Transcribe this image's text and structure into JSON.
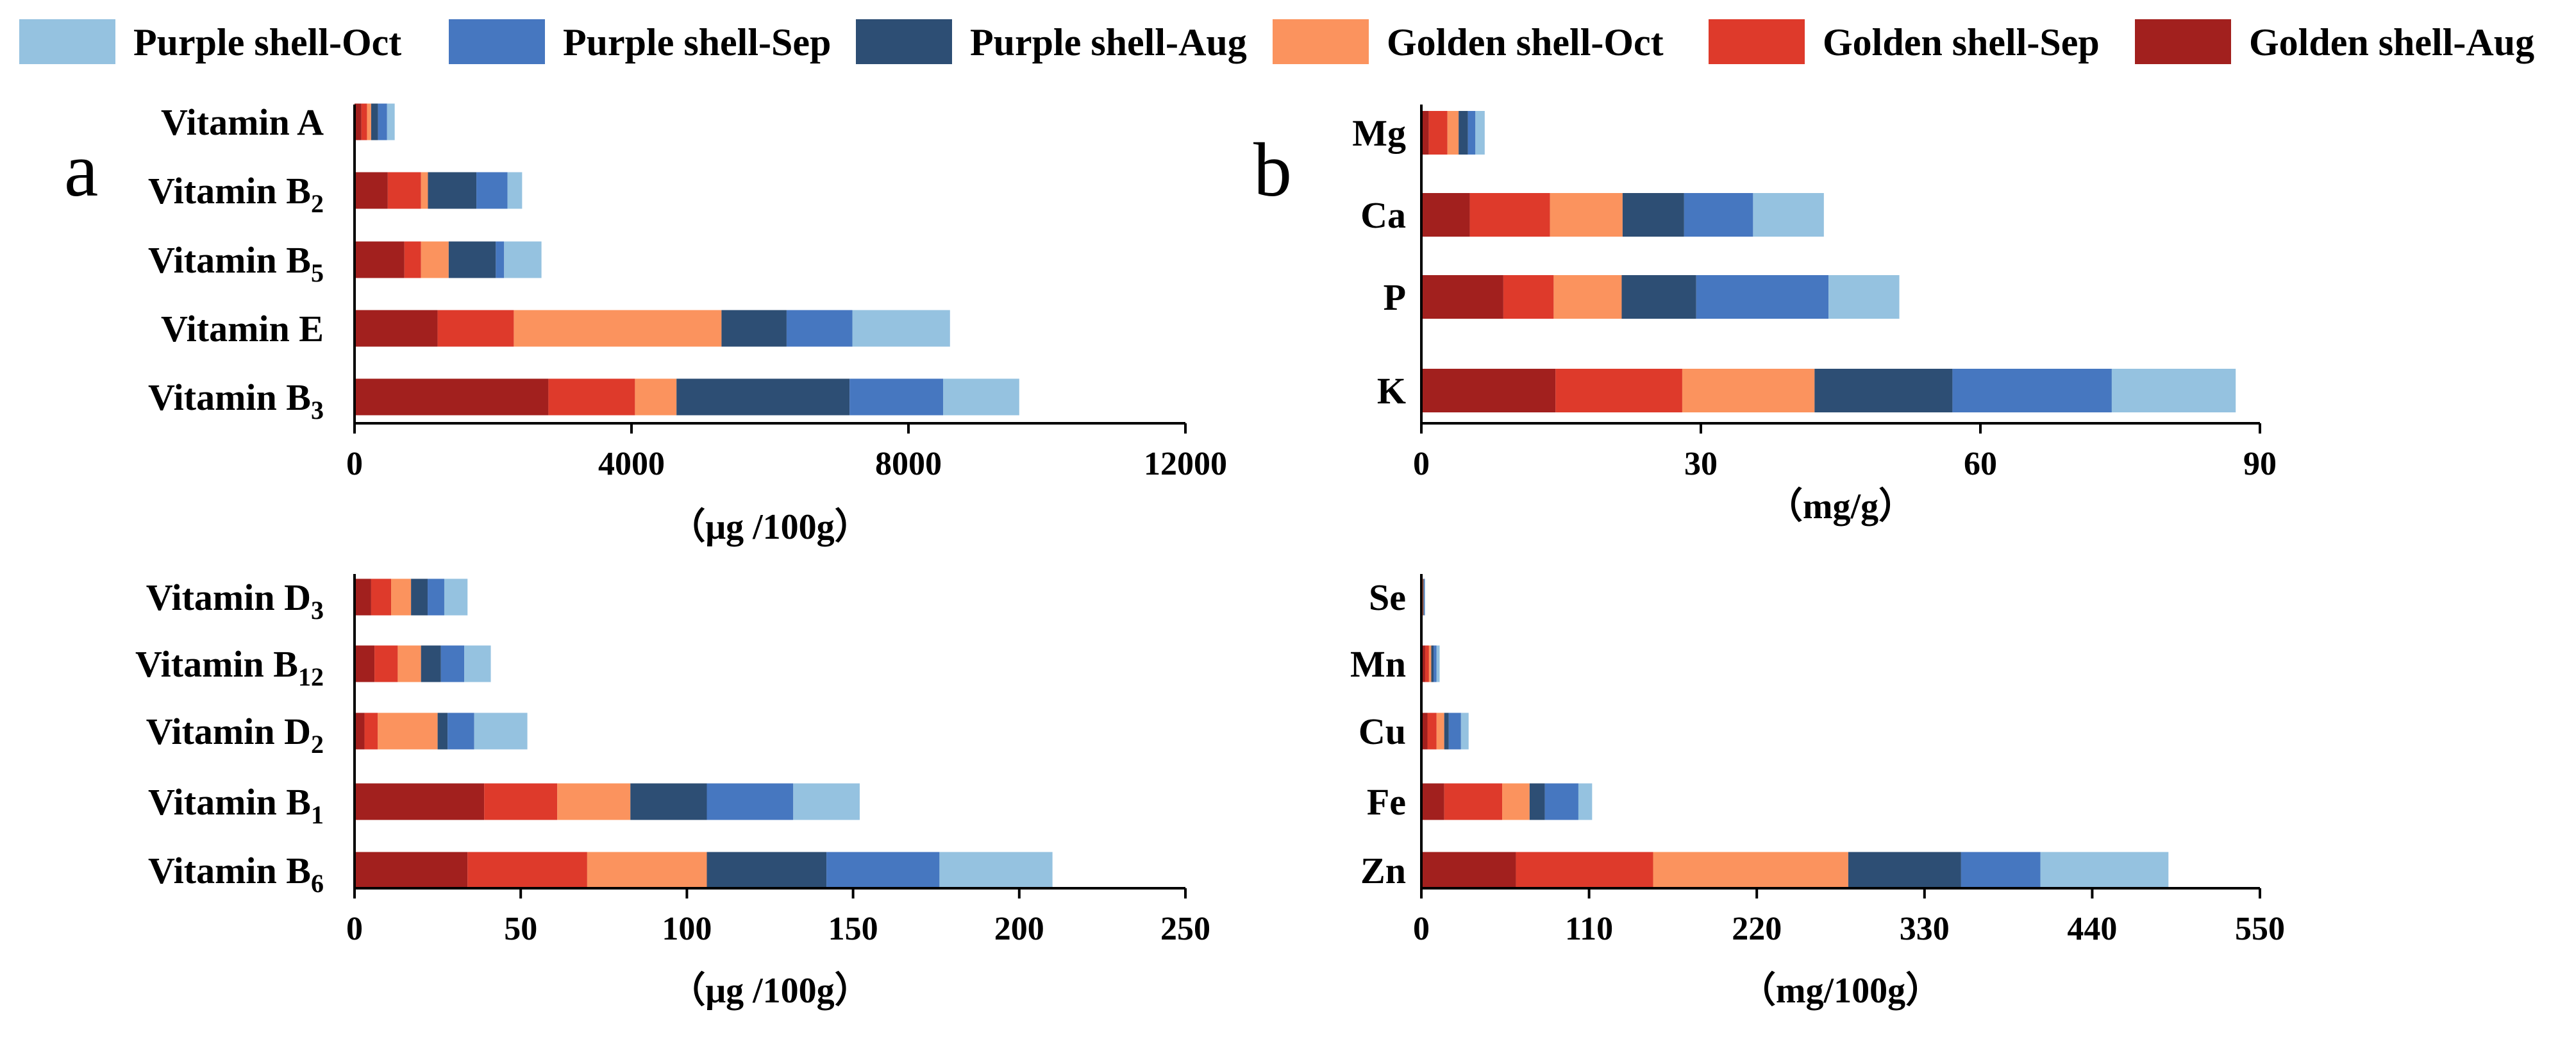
{
  "legend": [
    {
      "name": "Purple shell-Oct",
      "color": "#95C2E0"
    },
    {
      "name": "Purple shell-Sep",
      "color": "#4677C0"
    },
    {
      "name": "Purple shell-Aug",
      "color": "#2D4E74"
    },
    {
      "name": "Golden shell-Oct",
      "color": "#FB935E"
    },
    {
      "name": "Golden shell-Sep",
      "color": "#DE3A2B"
    },
    {
      "name": "Golden shell-Aug",
      "color": "#A2201E"
    }
  ],
  "panel_letters": {
    "a": "a",
    "b": "b"
  },
  "chart_data": [
    {
      "type": "bar",
      "orientation": "horizontal",
      "stacked": true,
      "panel": "top-left",
      "categories": [
        {
          "parts": [
            {
              "t": "Vitamin A"
            }
          ]
        },
        {
          "parts": [
            {
              "t": "Vitamin B"
            },
            {
              "sub": "2"
            }
          ]
        },
        {
          "parts": [
            {
              "t": "Vitamin B"
            },
            {
              "sub": "5"
            }
          ]
        },
        {
          "parts": [
            {
              "t": "Vitamin E"
            }
          ]
        },
        {
          "parts": [
            {
              "t": "Vitamin B"
            },
            {
              "sub": "3"
            }
          ]
        }
      ],
      "series": [
        {
          "name": "Golden shell-Aug",
          "values": [
            100,
            480,
            720,
            1200,
            2800
          ]
        },
        {
          "name": "Golden shell-Sep",
          "values": [
            80,
            480,
            240,
            1100,
            1250
          ]
        },
        {
          "name": "Golden shell-Oct",
          "values": [
            60,
            100,
            400,
            3000,
            600
          ]
        },
        {
          "name": "Purple shell-Aug",
          "values": [
            100,
            700,
            680,
            940,
            2500
          ]
        },
        {
          "name": "Purple shell-Sep",
          "values": [
            130,
            450,
            120,
            950,
            1350
          ]
        },
        {
          "name": "Purple shell-Oct",
          "values": [
            110,
            210,
            540,
            1410,
            1100
          ]
        }
      ],
      "xlim": [
        0,
        12000
      ],
      "ticks": [
        "0",
        "4000",
        "8000",
        "12000"
      ],
      "tick_values": [
        0,
        4000,
        8000,
        12000
      ],
      "xlabel": "（μg /100g）"
    },
    {
      "type": "bar",
      "orientation": "horizontal",
      "stacked": true,
      "panel": "top-right",
      "categories": [
        {
          "parts": [
            {
              "t": "Mg"
            }
          ]
        },
        {
          "parts": [
            {
              "t": "Ca"
            }
          ]
        },
        {
          "parts": [
            {
              "t": "P"
            }
          ]
        },
        {
          "parts": [
            {
              "t": "K"
            }
          ]
        }
      ],
      "series": [
        {
          "name": "Golden shell-Aug",
          "values": [
            0.8,
            5.2,
            8.8,
            14.4
          ]
        },
        {
          "name": "Golden shell-Sep",
          "values": [
            2.0,
            8.6,
            5.4,
            13.6
          ]
        },
        {
          "name": "Golden shell-Oct",
          "values": [
            1.2,
            7.8,
            7.3,
            14.2
          ]
        },
        {
          "name": "Purple shell-Aug",
          "values": [
            1.0,
            6.6,
            8.0,
            14.8
          ]
        },
        {
          "name": "Purple shell-Sep",
          "values": [
            0.8,
            7.4,
            14.2,
            17.1
          ]
        },
        {
          "name": "Purple shell-Oct",
          "values": [
            1.0,
            7.6,
            7.6,
            13.3
          ]
        }
      ],
      "xlim": [
        0,
        90
      ],
      "ticks": [
        "0",
        "30",
        "60",
        "90"
      ],
      "tick_values": [
        0,
        30,
        60,
        90
      ],
      "xlabel": "（mg/g）"
    },
    {
      "type": "bar",
      "orientation": "horizontal",
      "stacked": true,
      "panel": "bottom-left",
      "categories": [
        {
          "parts": [
            {
              "t": "Vitamin D"
            },
            {
              "sub": "3"
            }
          ]
        },
        {
          "parts": [
            {
              "t": "Vitamin B"
            },
            {
              "sub": "12"
            }
          ]
        },
        {
          "parts": [
            {
              "t": "Vitamin D"
            },
            {
              "sub": "2"
            }
          ]
        },
        {
          "parts": [
            {
              "t": "Vitamin B"
            },
            {
              "sub": "1"
            }
          ]
        },
        {
          "parts": [
            {
              "t": "Vitamin B"
            },
            {
              "sub": "6"
            }
          ]
        }
      ],
      "series": [
        {
          "name": "Golden shell-Aug",
          "values": [
            5,
            6,
            3,
            39,
            34
          ]
        },
        {
          "name": "Golden shell-Sep",
          "values": [
            6,
            7,
            4,
            22,
            36
          ]
        },
        {
          "name": "Golden shell-Oct",
          "values": [
            6,
            7,
            18,
            22,
            36
          ]
        },
        {
          "name": "Purple shell-Aug",
          "values": [
            5,
            6,
            3,
            23,
            36
          ]
        },
        {
          "name": "Purple shell-Sep",
          "values": [
            5,
            7,
            8,
            26,
            34
          ]
        },
        {
          "name": "Purple shell-Oct",
          "values": [
            7,
            8,
            16,
            20,
            34
          ]
        }
      ],
      "xlim": [
        0,
        250
      ],
      "ticks": [
        "0",
        "50",
        "100",
        "150",
        "200",
        "250"
      ],
      "tick_values": [
        0,
        50,
        100,
        150,
        200,
        250
      ],
      "xlabel": "（μg /100g）"
    },
    {
      "type": "bar",
      "orientation": "horizontal",
      "stacked": true,
      "panel": "bottom-right",
      "categories": [
        {
          "parts": [
            {
              "t": "Se"
            }
          ]
        },
        {
          "parts": [
            {
              "t": "Mn"
            }
          ]
        },
        {
          "parts": [
            {
              "t": "Cu"
            }
          ]
        },
        {
          "parts": [
            {
              "t": "Fe"
            }
          ]
        },
        {
          "parts": [
            {
              "t": "Zn"
            }
          ]
        }
      ],
      "series": [
        {
          "name": "Golden shell-Aug",
          "values": [
            0.5,
            2.5,
            4,
            15,
            62
          ]
        },
        {
          "name": "Golden shell-Sep",
          "values": [
            0.5,
            2.5,
            6,
            38,
            90
          ]
        },
        {
          "name": "Golden shell-Oct",
          "values": [
            0.3,
            1.5,
            5,
            18,
            128
          ]
        },
        {
          "name": "Purple shell-Aug",
          "values": [
            0.5,
            1.5,
            3,
            10,
            74
          ]
        },
        {
          "name": "Purple shell-Sep",
          "values": [
            0.4,
            2,
            8,
            22,
            52
          ]
        },
        {
          "name": "Purple shell-Oct",
          "values": [
            0.3,
            2,
            5,
            9,
            84
          ]
        }
      ],
      "xlim": [
        0,
        550
      ],
      "ticks": [
        "0",
        "110",
        "220",
        "330",
        "440",
        "550"
      ],
      "tick_values": [
        0,
        110,
        220,
        330,
        440,
        550
      ],
      "xlabel": "（mg/100g）"
    }
  ]
}
